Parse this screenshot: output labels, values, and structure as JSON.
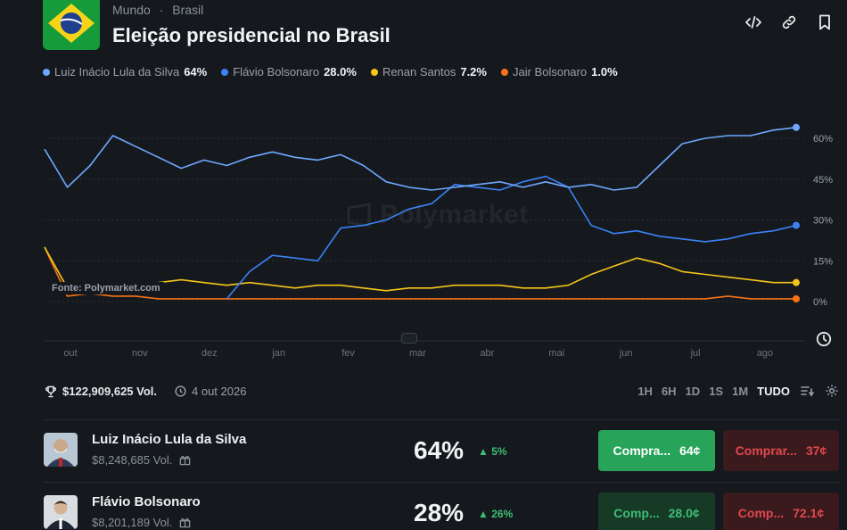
{
  "header": {
    "breadcrumb": [
      "Mundo",
      "Brasil"
    ],
    "breadcrumb_sep": "·",
    "title": "Eleição presidencial no Brasil",
    "icons": [
      "embed-icon",
      "link-icon",
      "bookmark-icon"
    ]
  },
  "legend": [
    {
      "name": "Luiz Inácio Lula da Silva",
      "value": "64%",
      "color": "#6ea8fe"
    },
    {
      "name": "Flávio Bolsonaro",
      "value": "28.0%",
      "color": "#3b82f6"
    },
    {
      "name": "Renan Santos",
      "value": "7.2%",
      "color": "#f5c518"
    },
    {
      "name": "Jair Bolsonaro",
      "value": "1.0%",
      "color": "#f97316"
    }
  ],
  "chart": {
    "watermark": "Polymarket",
    "source": "Fonte: Polymarket.com"
  },
  "chart_data": {
    "type": "line",
    "x_ticks": [
      "out",
      "nov",
      "dez",
      "jan",
      "fev",
      "mar",
      "abr",
      "mai",
      "jun",
      "jul",
      "ago"
    ],
    "y_ticks": [
      "60%",
      "45%",
      "30%",
      "15%",
      "0%"
    ],
    "ylim": [
      0,
      65
    ],
    "series": [
      {
        "name": "Luiz Inácio Lula da Silva",
        "color": "#6ea8fe",
        "values": [
          56,
          42,
          50,
          61,
          57,
          53,
          49,
          52,
          50,
          53,
          55,
          53,
          52,
          54,
          50,
          44,
          42,
          41,
          42,
          43,
          44,
          42,
          44,
          42,
          43,
          41,
          42,
          50,
          58,
          60,
          61,
          61,
          63,
          64
        ]
      },
      {
        "name": "Flávio Bolsonaro",
        "color": "#3b82f6",
        "values": [
          null,
          null,
          null,
          null,
          null,
          null,
          null,
          null,
          1,
          11,
          17,
          16,
          15,
          27,
          28,
          30,
          34,
          36,
          43,
          42,
          41,
          44,
          46,
          42,
          28,
          25,
          26,
          24,
          23,
          22,
          23,
          25,
          26,
          28
        ]
      },
      {
        "name": "Renan Santos",
        "color": "#f5c518",
        "values": [
          20,
          5,
          4,
          5,
          3,
          7,
          8,
          7,
          6,
          7,
          6,
          5,
          6,
          6,
          5,
          4,
          5,
          5,
          6,
          6,
          6,
          5,
          5,
          6,
          10,
          13,
          16,
          14,
          11,
          10,
          9,
          8,
          7,
          7
        ]
      },
      {
        "name": "Jair Bolsonaro",
        "color": "#f97316",
        "values": [
          20,
          2,
          3,
          2,
          2,
          1,
          1,
          1,
          1,
          1,
          1,
          1,
          1,
          1,
          1,
          1,
          1,
          1,
          1,
          1,
          1,
          1,
          1,
          1,
          1,
          1,
          1,
          1,
          1,
          1,
          2,
          1,
          1,
          1
        ]
      }
    ]
  },
  "toolbar": {
    "volume": "$122,909,625 Vol.",
    "date": "4 out 2026",
    "ranges": [
      "1H",
      "6H",
      "1D",
      "1S",
      "1M",
      "TUDO"
    ],
    "active_range": "TUDO"
  },
  "outcomes": [
    {
      "name": "Luiz Inácio Lula da Silva",
      "volume": "$8,248,685 Vol.",
      "percent": "64%",
      "change": "5%",
      "buy_yes": "Compra...",
      "yes_price": "64¢",
      "buy_no": "Comprar...",
      "no_price": "37¢"
    },
    {
      "name": "Flávio Bolsonaro",
      "volume": "$8,201,189 Vol.",
      "percent": "28%",
      "change": "26%",
      "buy_yes": "Comp...",
      "yes_price": "28.0¢",
      "buy_no": "Comp...",
      "no_price": "72.1¢"
    }
  ]
}
